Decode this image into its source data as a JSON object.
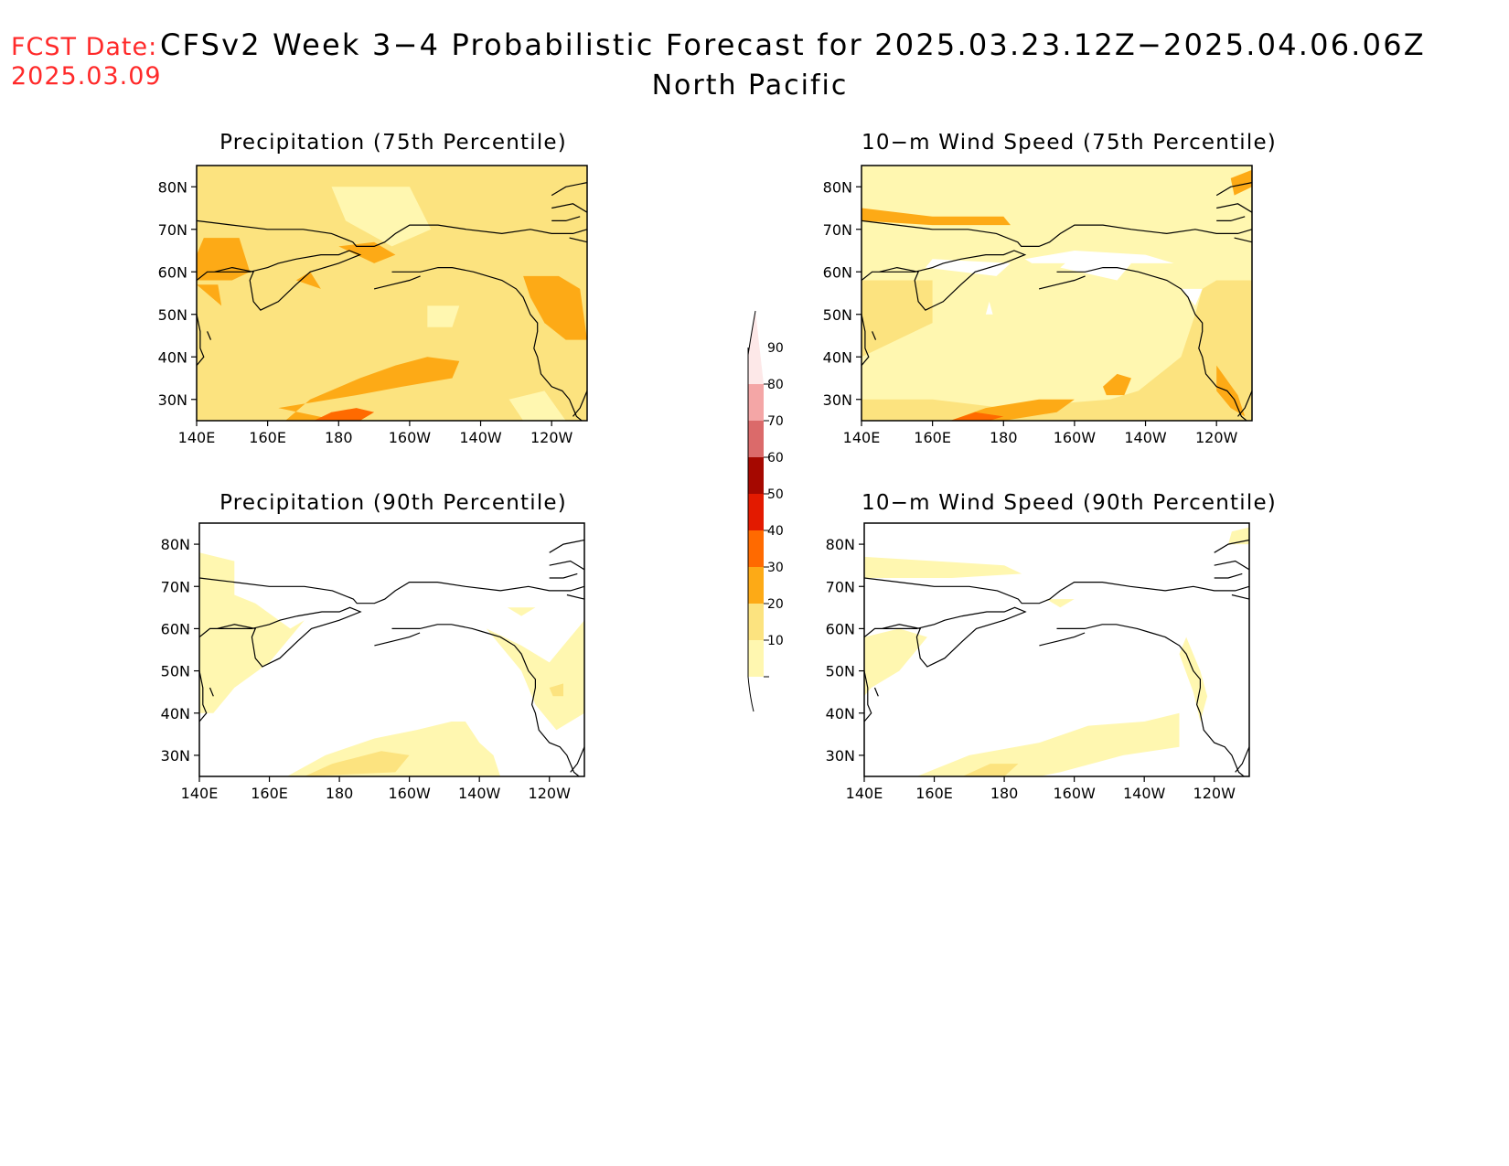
{
  "header": {
    "fcst_label": "FCST Date:",
    "fcst_date": "2025.03.09",
    "title": "CFSv2 Week 3−4 Probabilistic Forecast for 2025.03.23.12Z−2025.04.06.06Z",
    "region": "North Pacific"
  },
  "panels": [
    {
      "id": "precip75",
      "title": "Precipitation (75th Percentile)",
      "base_level": 20
    },
    {
      "id": "wind75",
      "title": "10−m Wind Speed (75th Percentile)",
      "base_level": 10
    },
    {
      "id": "precip90",
      "title": "Precipitation (90th Percentile)",
      "base_level": 0
    },
    {
      "id": "wind90",
      "title": "10−m Wind Speed (90th Percentile)",
      "base_level": 0
    }
  ],
  "axes": {
    "lat_labels": [
      "30N",
      "40N",
      "50N",
      "60N",
      "70N",
      "80N"
    ],
    "lat_values": [
      30,
      40,
      50,
      60,
      70,
      80
    ],
    "lon_labels": [
      "140E",
      "160E",
      "180",
      "160W",
      "140W",
      "120W"
    ],
    "lon_values": [
      140,
      160,
      180,
      200,
      220,
      240
    ],
    "lat_range": [
      25,
      85
    ],
    "lon_range": [
      140,
      250
    ]
  },
  "colorbar": {
    "levels": [
      "10",
      "20",
      "30",
      "40",
      "50",
      "60",
      "70",
      "80",
      "90"
    ],
    "colors": [
      "#fff7b0",
      "#fce37f",
      "#fdaa16",
      "#ff6a00",
      "#e31a00",
      "#a50800",
      "#db6a6a",
      "#f4a6a6",
      "#fde8e8"
    ]
  },
  "palette": {
    "title": "#000000",
    "fcst": "#ff2a2a",
    "coast": "#000000"
  }
}
